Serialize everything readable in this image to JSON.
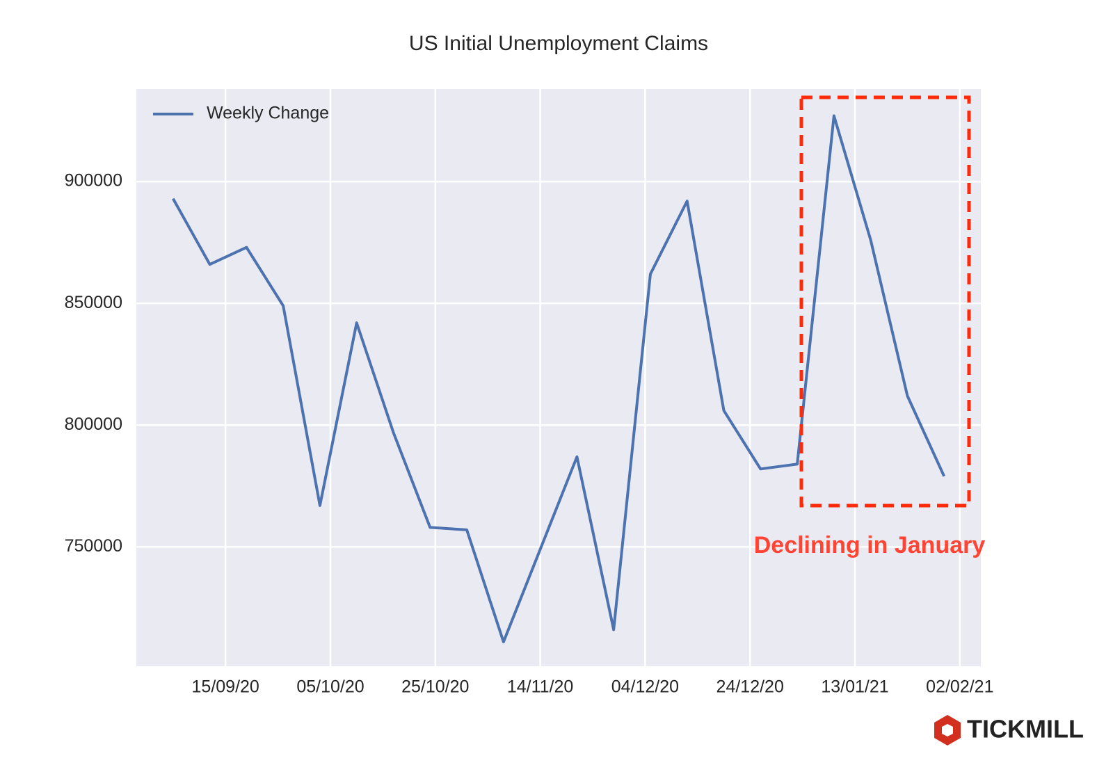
{
  "chart_data": {
    "type": "line",
    "title": "US Initial Unemployment Claims",
    "x": [
      "2020-09-05",
      "2020-09-12",
      "2020-09-19",
      "2020-09-26",
      "2020-10-03",
      "2020-10-10",
      "2020-10-17",
      "2020-10-24",
      "2020-10-31",
      "2020-11-07",
      "2020-11-14",
      "2020-11-21",
      "2020-11-28",
      "2020-12-05",
      "2020-12-12",
      "2020-12-19",
      "2020-12-26",
      "2021-01-02",
      "2021-01-09",
      "2021-01-16",
      "2021-01-23",
      "2021-01-30"
    ],
    "series": [
      {
        "name": "Weekly Change",
        "color": "#4c72b0",
        "values": [
          893000,
          866000,
          873000,
          849000,
          767000,
          842000,
          797000,
          758000,
          757000,
          711000,
          749000,
          787000,
          716000,
          862000,
          892000,
          806000,
          782000,
          784000,
          927000,
          876000,
          812000,
          779000
        ]
      }
    ],
    "xlim": [
      "2020-08-29",
      "2021-02-06"
    ],
    "xticks": [
      {
        "value": "2020-09-15",
        "label": "15/09/20"
      },
      {
        "value": "2020-10-05",
        "label": "05/10/20"
      },
      {
        "value": "2020-10-25",
        "label": "25/10/20"
      },
      {
        "value": "2020-11-14",
        "label": "14/11/20"
      },
      {
        "value": "2020-12-04",
        "label": "04/12/20"
      },
      {
        "value": "2020-12-24",
        "label": "24/12/20"
      },
      {
        "value": "2021-01-13",
        "label": "13/01/21"
      },
      {
        "value": "2021-02-02",
        "label": "02/02/21"
      }
    ],
    "ylim": [
      701000,
      938000
    ],
    "yticks": [
      750000,
      800000,
      850000,
      900000
    ],
    "grid": true,
    "legend": "upper left",
    "annotation": "Declining in January"
  },
  "logo": "TICKMILL"
}
